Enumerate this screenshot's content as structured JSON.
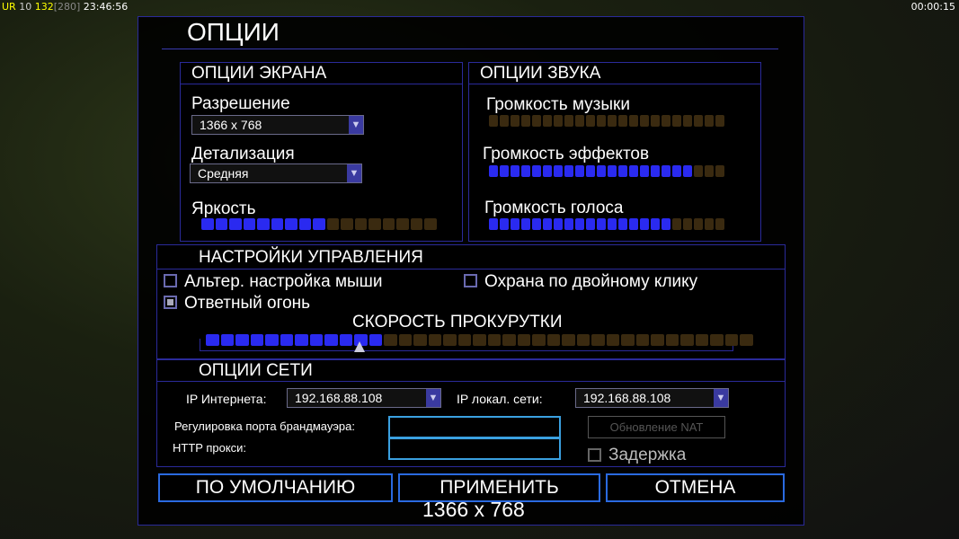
{
  "hud": {
    "ur": "UR",
    "n1": "10",
    "n2": "132",
    "n3": "[280]",
    "clock": "23:46:56",
    "timer": "00:00:15"
  },
  "title": "ОПЦИИ",
  "screen": {
    "header": "ОПЦИИ ЭКРАНА",
    "resolution_label": "Разрешение",
    "resolution_value": "1366 x 768",
    "detail_label": "Детализация",
    "detail_value": "Средняя",
    "brightness_label": "Яркость",
    "brightness": {
      "filled": 9,
      "total": 17
    }
  },
  "sound": {
    "header": "ОПЦИИ ЗВУКА",
    "music_label": "Громкость музыки",
    "music": {
      "filled": 0,
      "total": 22
    },
    "effects_label": "Громкость эффектов",
    "effects": {
      "filled": 19,
      "total": 22
    },
    "voice_label": "Громкость голоса",
    "voice": {
      "filled": 17,
      "total": 22
    }
  },
  "controls": {
    "header": "НАСТРОЙКИ УПРАВЛЕНИЯ",
    "alt_mouse": {
      "label": "Альтер. настройка мыши",
      "checked": false
    },
    "retaliation": {
      "label": "Ответный огонь",
      "checked": true
    },
    "double_click_guard": {
      "label": "Охрана по двойному клику",
      "checked": false
    },
    "scroll_label": "СКОРОСТЬ ПРОКУРУТКИ",
    "scroll": {
      "filled": 12,
      "total": 37
    }
  },
  "network": {
    "header": "ОПЦИИ СЕТИ",
    "internet_ip_label": "IP Интернета:",
    "internet_ip": "192.168.88.108",
    "lan_ip_label": "IP локал. сети:",
    "lan_ip": "192.168.88.108",
    "firewall_label": "Регулировка порта брандмауэра:",
    "firewall_value": "",
    "proxy_label": "HTTP прокси:",
    "proxy_value": "",
    "nat_button": "Обновление NAT",
    "delay": {
      "label": "Задержка",
      "checked": false
    }
  },
  "buttons": {
    "defaults": "ПО УМОЛЧАНИЮ",
    "apply": "ПРИМЕНИТЬ",
    "cancel": "ОТМЕНА"
  },
  "overlay_resolution": "1366 x 768",
  "colors": {
    "accent": "#2a2af0",
    "border": "#2a2a9a",
    "empty_segment": "#3a2a10"
  }
}
